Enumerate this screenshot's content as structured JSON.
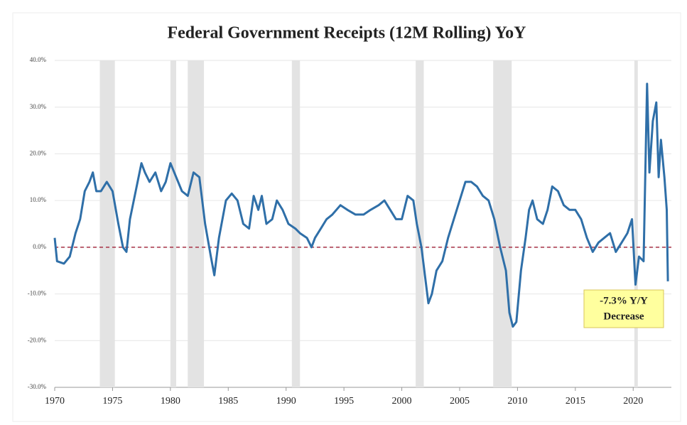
{
  "chart_data": {
    "type": "line",
    "title": "Federal Government Receipts (12M Rolling) YoY",
    "x": [
      1970.0,
      1970.2,
      1970.8,
      1971.3,
      1971.8,
      1972.2,
      1972.6,
      1973.0,
      1973.3,
      1973.6,
      1974.0,
      1974.5,
      1975.0,
      1975.5,
      1975.9,
      1976.2,
      1976.5,
      1977.0,
      1977.5,
      1977.8,
      1978.2,
      1978.7,
      1979.2,
      1979.6,
      1980.0,
      1980.5,
      1981.0,
      1981.5,
      1982.0,
      1982.5,
      1983.0,
      1983.5,
      1983.8,
      1984.2,
      1984.8,
      1985.3,
      1985.8,
      1986.3,
      1986.8,
      1987.2,
      1987.6,
      1987.9,
      1988.3,
      1988.8,
      1989.2,
      1989.7,
      1990.2,
      1990.8,
      1991.2,
      1991.8,
      1992.2,
      1992.5,
      1993.0,
      1993.5,
      1994.0,
      1994.7,
      1995.3,
      1996.0,
      1996.7,
      1997.3,
      1998.0,
      1998.5,
      1999.0,
      1999.5,
      2000.0,
      2000.5,
      2001.0,
      2001.3,
      2001.7,
      2002.0,
      2002.3,
      2002.6,
      2003.0,
      2003.5,
      2004.0,
      2004.5,
      2005.0,
      2005.5,
      2006.0,
      2006.5,
      2007.0,
      2007.5,
      2008.0,
      2008.5,
      2009.0,
      2009.3,
      2009.6,
      2009.9,
      2010.3,
      2010.7,
      2011.0,
      2011.3,
      2011.7,
      2012.2,
      2012.6,
      2013.0,
      2013.5,
      2014.0,
      2014.5,
      2015.0,
      2015.5,
      2016.0,
      2016.5,
      2017.0,
      2017.5,
      2018.0,
      2018.5,
      2019.0,
      2019.5,
      2019.9,
      2020.2,
      2020.5,
      2020.9,
      2021.2,
      2021.4,
      2021.7,
      2022.0,
      2022.2,
      2022.4,
      2022.7,
      2022.9,
      2023.0
    ],
    "series": [
      {
        "color": "#2f6fa8",
        "values": [
          2,
          -3,
          -3.5,
          -2,
          3,
          6,
          12,
          14,
          16,
          12,
          12,
          14,
          12,
          5,
          0,
          -1,
          6,
          12,
          18,
          16,
          14,
          16,
          12,
          14,
          18,
          15,
          12,
          11,
          16,
          15,
          5,
          -2,
          -6,
          2,
          10,
          11.5,
          10,
          5,
          4,
          11,
          8,
          11,
          5,
          6,
          10,
          8,
          5,
          4,
          3,
          2,
          0,
          2,
          4,
          6,
          7,
          9,
          8,
          7,
          7,
          8,
          9,
          10,
          8,
          6,
          6,
          11,
          10,
          5,
          0,
          -6,
          -12,
          -10,
          -5,
          -3,
          2,
          6,
          10,
          14,
          14,
          13,
          11,
          10,
          6,
          0,
          -5,
          -14,
          -17,
          -16,
          -5,
          2,
          8,
          10,
          6,
          5,
          8,
          13,
          12,
          9,
          8,
          8,
          6,
          2,
          -1,
          1,
          2,
          3,
          -1,
          1,
          3,
          6,
          -8,
          -2,
          -3,
          35,
          16,
          27,
          31,
          15,
          23,
          15,
          8,
          -7.3
        ]
      }
    ],
    "xlim": [
      1970,
      2023.3
    ],
    "xticks": [
      1970,
      1975,
      1980,
      1985,
      1990,
      1995,
      2000,
      2005,
      2010,
      2015,
      2020
    ],
    "ylim": [
      -30,
      40
    ],
    "yticks": [
      {
        "value": -30,
        "label": "-30.0%"
      },
      {
        "value": -20,
        "label": "-20.0%"
      },
      {
        "value": -10,
        "label": "-10.0%"
      },
      {
        "value": 0,
        "label": "0.0%"
      },
      {
        "value": 10,
        "label": "10.0%"
      },
      {
        "value": 20,
        "label": "20.0%"
      },
      {
        "value": 30,
        "label": "30.0%"
      },
      {
        "value": 40,
        "label": "40.0%"
      }
    ],
    "grid": true,
    "reference_line": 0,
    "recessions": [
      [
        1973.9,
        1975.2
      ],
      [
        1980.0,
        1980.5
      ],
      [
        1981.5,
        1982.9
      ],
      [
        1990.5,
        1991.2
      ],
      [
        2001.2,
        2001.9
      ],
      [
        2007.9,
        2009.5
      ],
      [
        2020.1,
        2020.4
      ]
    ],
    "annotation": [
      "-7.3% Y/Y",
      "Decrease"
    ]
  }
}
